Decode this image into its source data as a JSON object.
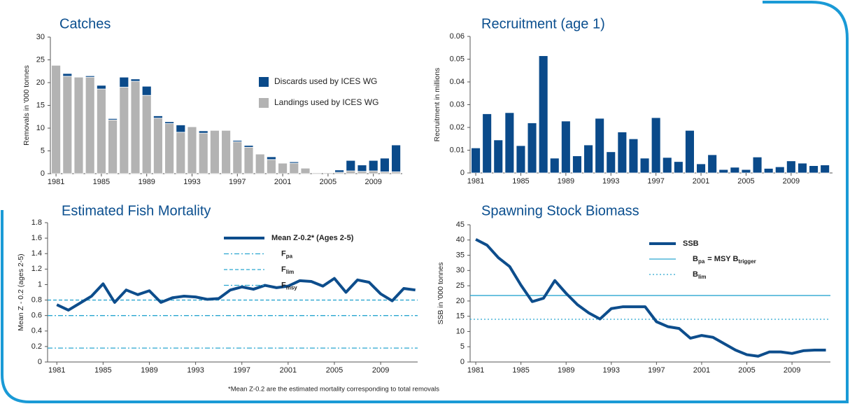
{
  "chart_data": [
    {
      "type": "bar",
      "title": "Catches",
      "y_label": "Removals in '000 tonnes",
      "categories": [
        "1981",
        null,
        null,
        null,
        "1985",
        null,
        null,
        null,
        "1989",
        null,
        null,
        null,
        "1993",
        null,
        null,
        null,
        "1997",
        null,
        null,
        null,
        "2001",
        null,
        null,
        null,
        "2005",
        null,
        null,
        null,
        "2009",
        null,
        null
      ],
      "series": [
        {
          "name": "Landings used by ICES WG",
          "color": "#b3b3b3",
          "values": [
            23.8,
            21.4,
            21.2,
            21.2,
            18.6,
            11.8,
            19.0,
            20.3,
            17.2,
            12.2,
            11.0,
            9.1,
            10.3,
            8.9,
            9.5,
            9.5,
            7.0,
            5.8,
            4.3,
            3.1,
            2.3,
            2.3,
            1.2,
            0.2,
            0.2,
            0.3,
            0.6,
            0.5,
            0.6,
            0.4,
            0.4
          ]
        },
        {
          "name": "Discards used by ICES WG",
          "color": "#0a4a8a",
          "values": [
            0,
            0.6,
            0,
            0.3,
            0.8,
            0.3,
            2.2,
            0.5,
            2.0,
            0.5,
            0.4,
            1.6,
            0,
            0.5,
            0,
            0,
            0.3,
            0.4,
            0,
            0.6,
            0,
            0.3,
            0,
            0,
            0,
            0.5,
            2.3,
            1.4,
            2.3,
            3.0,
            5.9
          ]
        }
      ],
      "ylim": [
        0,
        30
      ],
      "yticks": [
        0,
        5,
        10,
        15,
        20,
        25,
        30
      ]
    },
    {
      "type": "bar",
      "title": "Recruitment (age 1)",
      "y_label": "Recruitment in millions",
      "categories": [
        "1981",
        null,
        null,
        null,
        "1985",
        null,
        null,
        null,
        "1989",
        null,
        null,
        null,
        "1993",
        null,
        null,
        null,
        "1997",
        null,
        null,
        null,
        "2001",
        null,
        null,
        null,
        "2005",
        null,
        null,
        null,
        "2009",
        null,
        null,
        null
      ],
      "series": [
        {
          "name": null,
          "color": "#0a4a8a",
          "values": [
            0.011,
            0.026,
            0.0145,
            0.0265,
            0.012,
            0.022,
            0.0515,
            0.0065,
            0.0228,
            0.0075,
            0.0123,
            0.024,
            0.0093,
            0.018,
            0.015,
            0.0065,
            0.0243,
            0.0068,
            0.005,
            0.0187,
            0.004,
            0.008,
            0.0015,
            0.0025,
            0.0015,
            0.007,
            0.002,
            0.0027,
            0.0053,
            0.0043,
            0.0032,
            0.0035
          ]
        }
      ],
      "ylim": [
        0,
        0.06
      ],
      "yticks": [
        0,
        0.01,
        0.02,
        0.03,
        0.04,
        0.05,
        0.06
      ]
    },
    {
      "type": "line",
      "title": "Estimated Fish Mortality",
      "y_label": "Mean Z - 0.2 (ages 2-5)",
      "note": "*Mean Z-0.2 are the estimated mortality corresponding to total removals",
      "x": [
        1981,
        1982,
        1983,
        1984,
        1985,
        1986,
        1987,
        1988,
        1989,
        1990,
        1991,
        1992,
        1993,
        1994,
        1995,
        1996,
        1997,
        1998,
        1999,
        2000,
        2001,
        2002,
        2003,
        2004,
        2005,
        2006,
        2007,
        2008,
        2009,
        2010,
        2011,
        2012
      ],
      "series": [
        {
          "name": "Mean Z-0.2* (Ages 2-5)",
          "color": "#0d4d8c",
          "values": [
            0.74,
            0.67,
            0.76,
            0.85,
            1.01,
            0.77,
            0.93,
            0.87,
            0.92,
            0.77,
            0.83,
            0.85,
            0.84,
            0.81,
            0.82,
            0.93,
            0.97,
            0.94,
            0.99,
            0.96,
            0.98,
            1.05,
            1.04,
            0.98,
            1.08,
            0.9,
            1.06,
            1.03,
            0.88,
            0.79,
            0.95,
            0.93
          ]
        }
      ],
      "reference_lines": [
        {
          "name": [
            "F",
            "pa"
          ],
          "value": 0.6,
          "color": "#2aa6d0",
          "style": "dashdot"
        },
        {
          "name": [
            "F",
            "lim"
          ],
          "value": 0.8,
          "color": "#2aa6d0",
          "style": "dashed"
        },
        {
          "name": [
            "F",
            "msy"
          ],
          "value": 0.18,
          "color": "#2aa6d0",
          "style": "dashdot"
        }
      ],
      "xlim": [
        1980.2,
        2012.2
      ],
      "xticks": [
        1981,
        1985,
        1989,
        1993,
        1997,
        2001,
        2005,
        2009
      ],
      "ylim": [
        0,
        1.8
      ],
      "yticks": [
        0,
        0.2,
        0.4,
        0.6,
        0.8,
        1,
        1.2,
        1.4,
        1.6,
        1.8
      ]
    },
    {
      "type": "line",
      "title": "Spawning Stock Biomass",
      "y_label": "SSB in '000 tonnes",
      "x": [
        1981,
        1982,
        1983,
        1984,
        1985,
        1986,
        1987,
        1988,
        1989,
        1990,
        1991,
        1992,
        1993,
        1994,
        1995,
        1996,
        1997,
        1998,
        1999,
        2000,
        2001,
        2002,
        2003,
        2004,
        2005,
        2006,
        2007,
        2008,
        2009,
        2010,
        2011,
        2012
      ],
      "series": [
        {
          "name": "SSB",
          "color": "#0d4d8c",
          "values": [
            40.2,
            38.3,
            34.2,
            31.3,
            25.2,
            19.8,
            20.9,
            26.7,
            22.5,
            18.8,
            16.1,
            14.1,
            17.5,
            18.1,
            18.1,
            18.1,
            13.2,
            11.6,
            11.0,
            7.8,
            8.7,
            8.1,
            6.0,
            3.9,
            2.4,
            1.9,
            3.3,
            3.3,
            2.8,
            3.7,
            3.9,
            3.9
          ]
        }
      ],
      "reference_lines": [
        {
          "name": [
            "B",
            "pa",
            "= MSY B",
            "trigger"
          ],
          "value": 21.8,
          "color": "#2aa6d0",
          "style": "solid"
        },
        {
          "name": [
            "B",
            "lim"
          ],
          "value": 14,
          "color": "#2aa6d0",
          "style": "dotted"
        }
      ],
      "xlim": [
        1980.5,
        2012.4
      ],
      "xticks": [
        1981,
        1985,
        1989,
        1993,
        1997,
        2001,
        2005,
        2009
      ],
      "ylim": [
        0,
        45
      ],
      "yticks": [
        0,
        5,
        10,
        15,
        20,
        25,
        30,
        35,
        40,
        45
      ]
    }
  ]
}
